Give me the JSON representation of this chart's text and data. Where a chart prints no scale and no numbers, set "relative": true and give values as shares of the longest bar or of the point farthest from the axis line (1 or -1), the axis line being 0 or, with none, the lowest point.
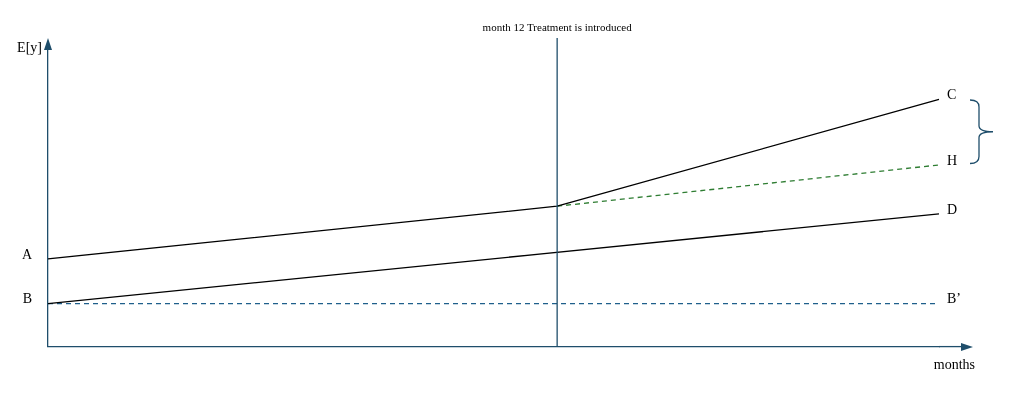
{
  "chart_data": {
    "type": "line",
    "relative": true,
    "xlabel": "months",
    "ylabel": "E[y]",
    "marker": "none",
    "categories": [
      null,
      null,
      null,
      null,
      null,
      null,
      null,
      null
    ],
    "series": [
      {
        "color": "#000000",
        "values": [
          0.355,
          null,
          null,
          null,
          0.568,
          null,
          null,
          1
        ],
        "line_style": "solid"
      },
      {
        "color": "#2e7d32",
        "values": [
          null,
          null,
          null,
          null,
          0.568,
          null,
          null,
          0.735
        ],
        "line_style": "dashed"
      },
      {
        "color": "#000000",
        "values": [
          0.174,
          null,
          null,
          null,
          null,
          null,
          null,
          0.537
        ],
        "line_style": "solid"
      },
      {
        "color": "#1f5f8b",
        "values": [
          0.174,
          null,
          null,
          null,
          null,
          null,
          null,
          0.174
        ],
        "line_style": "dashed"
      }
    ],
    "annotations": [
      "month 12 Treatment is introduced",
      "A",
      "B",
      "C",
      "H",
      "D",
      "B’"
    ]
  }
}
